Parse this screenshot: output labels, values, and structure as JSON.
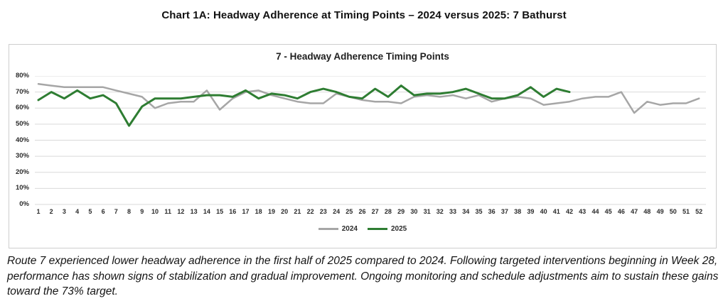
{
  "page_title": "Chart 1A: Headway Adherence at Timing Points – 2024 versus 2025: 7 Bathurst",
  "chart_data": {
    "type": "line",
    "title": "7 - Headway Adherence Timing Points",
    "xlabel": "",
    "ylabel": "",
    "x": [
      1,
      2,
      3,
      4,
      5,
      6,
      7,
      8,
      9,
      10,
      11,
      12,
      13,
      14,
      15,
      16,
      17,
      18,
      19,
      20,
      21,
      22,
      23,
      24,
      25,
      26,
      27,
      28,
      29,
      30,
      31,
      32,
      33,
      34,
      35,
      36,
      37,
      38,
      39,
      40,
      41,
      42,
      43,
      44,
      45,
      46,
      47,
      48,
      49,
      50,
      51,
      52
    ],
    "ylim": [
      0,
      80
    ],
    "yticks": [
      0,
      10,
      20,
      30,
      40,
      50,
      60,
      70,
      80
    ],
    "ytick_labels": [
      "0%",
      "10%",
      "20%",
      "30%",
      "40%",
      "50%",
      "60%",
      "70%",
      "80%"
    ],
    "grid": true,
    "legend_position": "bottom",
    "gridline_color": "#d9d9d9",
    "series": [
      {
        "name": "2024",
        "color": "#a6a6a6",
        "values": [
          75,
          74,
          73,
          73,
          73,
          73,
          71,
          69,
          67,
          60,
          63,
          64,
          64,
          71,
          59,
          66,
          70,
          71,
          68,
          66,
          64,
          63,
          63,
          69,
          67,
          65,
          64,
          64,
          63,
          67,
          68,
          67,
          68,
          66,
          68,
          64,
          66,
          67,
          66,
          62,
          63,
          64,
          66,
          67,
          67,
          70,
          57,
          64,
          62,
          63,
          63,
          66
        ]
      },
      {
        "name": "2025",
        "color": "#2e7d32",
        "values": [
          65,
          70,
          66,
          71,
          66,
          68,
          63,
          49,
          61,
          66,
          66,
          66,
          67,
          68,
          68,
          67,
          71,
          66,
          69,
          68,
          66,
          70,
          72,
          70,
          67,
          66,
          72,
          67,
          74,
          68,
          69,
          69,
          70,
          72,
          69,
          66,
          66,
          68,
          73,
          67,
          72,
          70
        ]
      }
    ]
  },
  "footer": {
    "text": "Route 7 experienced lower headway adherence in the first half of 2025 compared to 2024. Following targeted interventions beginning in Week 28, performance has shown signs of stabilization and gradual improvement. Ongoing monitoring and schedule adjustments aim to sustain these gains toward the 73% target."
  }
}
